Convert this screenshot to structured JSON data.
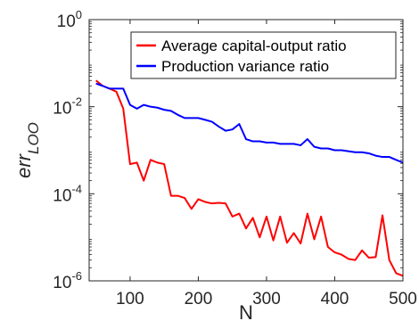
{
  "chart_data": {
    "type": "line",
    "xlabel": "N",
    "ylabel": "err",
    "ylabel_subscript": "LOO",
    "xlim": [
      40,
      500
    ],
    "ylim": [
      1e-06,
      1
    ],
    "yscale": "log",
    "x_ticks": [
      100,
      200,
      300,
      400,
      500
    ],
    "x_tick_labels": [
      "100",
      "200",
      "300",
      "400",
      "500"
    ],
    "y_ticks": [
      1e-06,
      0.0001,
      0.01,
      1
    ],
    "y_tick_labels": [
      {
        "base": "10",
        "exp": "-6"
      },
      {
        "base": "10",
        "exp": "-4"
      },
      {
        "base": "10",
        "exp": "-2"
      },
      {
        "base": "10",
        "exp": "0"
      }
    ],
    "grid": false,
    "legend_position": "top-right",
    "series": [
      {
        "name": "Average capital-output ratio",
        "color": "#ff0000",
        "x": [
          50,
          60,
          70,
          80,
          90,
          100,
          110,
          120,
          130,
          140,
          150,
          160,
          170,
          180,
          190,
          200,
          210,
          220,
          230,
          240,
          250,
          260,
          270,
          280,
          290,
          300,
          310,
          320,
          330,
          340,
          350,
          360,
          370,
          380,
          390,
          400,
          410,
          420,
          430,
          440,
          450,
          460,
          470,
          480,
          490,
          500
        ],
        "y": [
          0.04,
          0.03,
          0.026,
          0.022,
          0.009,
          0.00048,
          0.00052,
          0.0002,
          0.0006,
          0.00052,
          0.00048,
          9e-05,
          9e-05,
          8e-05,
          4.5e-05,
          7.5e-05,
          6.5e-05,
          6e-05,
          6.2e-05,
          6e-05,
          3e-05,
          3.5e-05,
          1.6e-05,
          2.8e-05,
          1e-05,
          3e-05,
          8.5e-06,
          3e-05,
          7.5e-06,
          1.25e-05,
          7.2e-06,
          3.5e-05,
          9e-06,
          3e-05,
          6e-06,
          4.5e-06,
          4e-06,
          3.2e-06,
          3e-06,
          5e-06,
          3.4e-06,
          3.5e-06,
          3.2e-05,
          3e-06,
          1.5e-06,
          1.3e-06
        ]
      },
      {
        "name": "Production variance ratio",
        "color": "#0000ff",
        "x": [
          50,
          60,
          70,
          80,
          90,
          100,
          110,
          120,
          130,
          140,
          150,
          160,
          170,
          180,
          190,
          200,
          210,
          220,
          230,
          240,
          250,
          260,
          270,
          280,
          290,
          300,
          310,
          320,
          330,
          340,
          350,
          360,
          370,
          380,
          390,
          400,
          410,
          420,
          430,
          440,
          450,
          460,
          470,
          480,
          490,
          500
        ],
        "y": [
          0.034,
          0.03,
          0.026,
          0.026,
          0.026,
          0.011,
          0.009,
          0.011,
          0.01,
          0.0095,
          0.0085,
          0.008,
          0.0065,
          0.0055,
          0.0055,
          0.0055,
          0.005,
          0.0045,
          0.0035,
          0.0028,
          0.003,
          0.004,
          0.0018,
          0.0016,
          0.0016,
          0.0015,
          0.0015,
          0.0014,
          0.0014,
          0.0014,
          0.0013,
          0.0018,
          0.0012,
          0.0011,
          0.0011,
          0.001,
          0.001,
          0.00095,
          0.0009,
          0.0009,
          0.00085,
          0.00075,
          0.0007,
          0.0007,
          0.0006,
          0.00052
        ]
      }
    ]
  }
}
